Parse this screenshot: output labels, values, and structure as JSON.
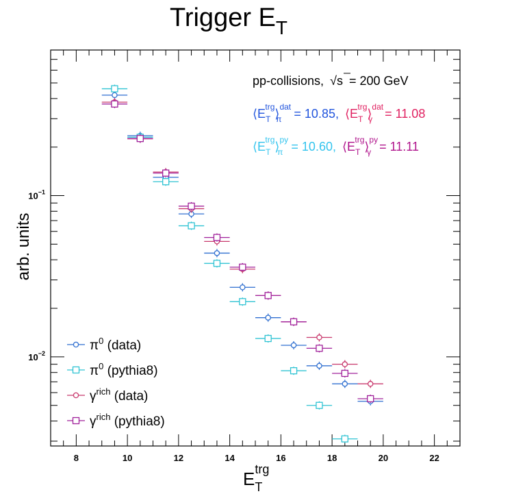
{
  "chart_data": {
    "type": "scatter",
    "title": "Trigger E",
    "title_sub": "T",
    "xlabel": "E",
    "xlabel_sup": "trg",
    "xlabel_sub": "T",
    "ylabel": "arb. units",
    "xlim": [
      7,
      23
    ],
    "ylim": [
      0.0028,
      0.8
    ],
    "yscale": "log",
    "xticks": [
      8,
      10,
      12,
      14,
      16,
      18,
      20,
      22
    ],
    "xtick_labels": [
      "8",
      "10",
      "12",
      "14",
      "16",
      "18",
      "20",
      "22"
    ],
    "yticks": [
      0.01,
      0.1
    ],
    "ytick_labels": [
      {
        "base": "10",
        "exp": "−2"
      },
      {
        "base": "10",
        "exp": "−1"
      }
    ],
    "legend_position": "bottom-left",
    "annotations": {
      "collision": "pp-collisions,",
      "sqrt_s": "s",
      "energy": "= 200 GeV",
      "avg_data_pi_value": "= 10.85,",
      "avg_data_gamma_value": "= 11.08",
      "avg_py_pi_value": "= 10.60,",
      "avg_py_gamma_value": "= 11.11",
      "et_base": "E",
      "et_sub": "T",
      "trg_sup": "trg",
      "dat_sup": "dat",
      "py_sup": "py",
      "pi_sub": "π",
      "gamma_sub": "γ",
      "color_data_pi": "#2255dd",
      "color_data_gamma": "#e02060",
      "color_py_pi": "#33c4ee",
      "color_py_gamma": "#b0148c"
    },
    "series": [
      {
        "name": "π",
        "name_sup": "0",
        "name_suffix": " (data)",
        "marker": "circle",
        "color": "#2f6fd0",
        "x": [
          9.5,
          10.5,
          11.5,
          12.5,
          13.5,
          14.5,
          15.5,
          16.5,
          17.5,
          18.5,
          19.5
        ],
        "y": [
          0.42,
          0.235,
          0.13,
          0.077,
          0.044,
          0.027,
          0.0175,
          0.0118,
          0.0088,
          0.0068,
          0.0053
        ]
      },
      {
        "name": "π",
        "name_sup": "0",
        "name_suffix": " (pythia8)",
        "marker": "square",
        "color": "#2fc3d3",
        "x": [
          9.5,
          10.5,
          11.5,
          12.5,
          13.5,
          14.5,
          15.5,
          16.5,
          17.5,
          18.5
        ],
        "y": [
          0.46,
          0.23,
          0.122,
          0.065,
          0.038,
          0.022,
          0.013,
          0.0082,
          0.005,
          0.0031
        ]
      },
      {
        "name": "γ",
        "name_sup": "rich",
        "name_suffix": " (data)",
        "marker": "circle",
        "color": "#c8386c",
        "x": [
          9.5,
          10.5,
          11.5,
          12.5,
          13.5,
          14.5,
          15.5,
          16.5,
          17.5,
          18.5,
          19.5
        ],
        "y": [
          0.38,
          0.225,
          0.14,
          0.083,
          0.052,
          0.035,
          0.024,
          0.0165,
          0.0132,
          0.009,
          0.0068
        ]
      },
      {
        "name": "γ",
        "name_sup": "rich",
        "name_suffix": " (pythia8)",
        "marker": "square",
        "color": "#a0209a",
        "x": [
          9.5,
          10.5,
          11.5,
          12.5,
          13.5,
          14.5,
          15.5,
          16.5,
          17.5,
          18.5,
          19.5
        ],
        "y": [
          0.37,
          0.226,
          0.138,
          0.086,
          0.055,
          0.036,
          0.024,
          0.0165,
          0.0113,
          0.0079,
          0.0055
        ]
      }
    ]
  }
}
